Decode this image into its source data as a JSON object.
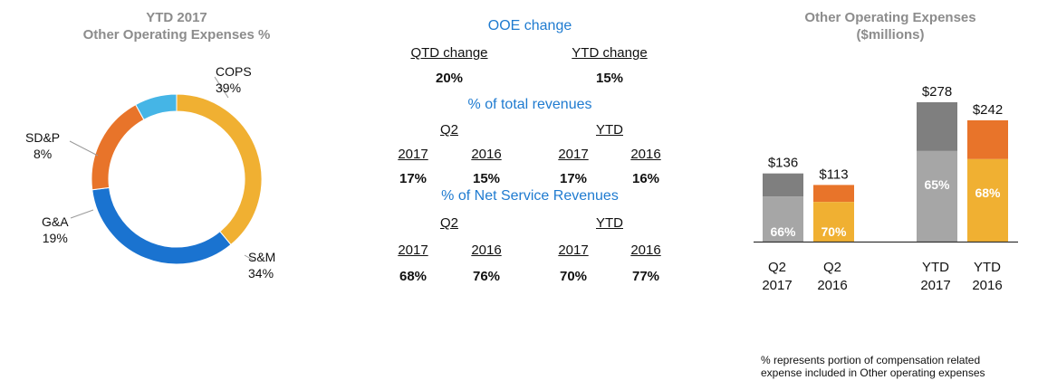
{
  "donut": {
    "title_line1": "YTD 2017",
    "title_line2": "Other Operating Expenses %"
  },
  "ooe": {
    "title": "OOE change",
    "qtd_label": "QTD change",
    "ytd_label": "YTD change",
    "qtd_value": "20%",
    "ytd_value": "15%",
    "total_rev_title": "% of total revenues",
    "q2_label": "Q2",
    "ytd_group_label": "YTD",
    "total_rev": {
      "years": [
        "2017",
        "2016",
        "2017",
        "2016"
      ],
      "values": [
        "17%",
        "15%",
        "17%",
        "16%"
      ]
    },
    "net_rev_title": "% of Net Service Revenues",
    "net_rev": {
      "years": [
        "2017",
        "2016",
        "2017",
        "2016"
      ],
      "values": [
        "68%",
        "76%",
        "70%",
        "77%"
      ]
    }
  },
  "bars": {
    "title_line1": "Other Operating Expenses",
    "title_line2": "($millions)",
    "footnote_line1": "% represents portion of compensation related",
    "footnote_line2": "expense included in Other operating expenses"
  },
  "chart_data": [
    {
      "type": "pie",
      "title": "YTD 2017 Other Operating Expenses %",
      "donut": true,
      "slices": [
        {
          "label": "COPS",
          "value": 39,
          "text": "39%",
          "color": "#f0b032"
        },
        {
          "label": "S&M",
          "value": 34,
          "text": "34%",
          "color": "#1a73d0"
        },
        {
          "label": "G&A",
          "value": 19,
          "text": "19%",
          "color": "#e8742a"
        },
        {
          "label": "SD&P",
          "value": 8,
          "text": "8%",
          "color": "#45b5e6"
        }
      ]
    },
    {
      "type": "bar",
      "stacked": true,
      "title": "Other Operating Expenses ($millions)",
      "categories": [
        {
          "line1": "Q2",
          "line2": "2017"
        },
        {
          "line1": "Q2",
          "line2": "2016"
        },
        {
          "line1": "YTD",
          "line2": "2017"
        },
        {
          "line1": "YTD",
          "line2": "2016"
        }
      ],
      "totals": [
        136,
        113,
        278,
        242
      ],
      "total_labels": [
        "$136",
        "$113",
        "$278",
        "$242"
      ],
      "compensation_pct": [
        66,
        70,
        65,
        68
      ],
      "pct_labels": [
        "66%",
        "70%",
        "65%",
        "68%"
      ],
      "colors": {
        "2017_bottom": "#a6a6a6",
        "2017_top": "#7f7f7f",
        "2016_bottom": "#f0b032",
        "2016_top": "#e8742a"
      },
      "ylim": [
        0,
        300
      ]
    }
  ]
}
